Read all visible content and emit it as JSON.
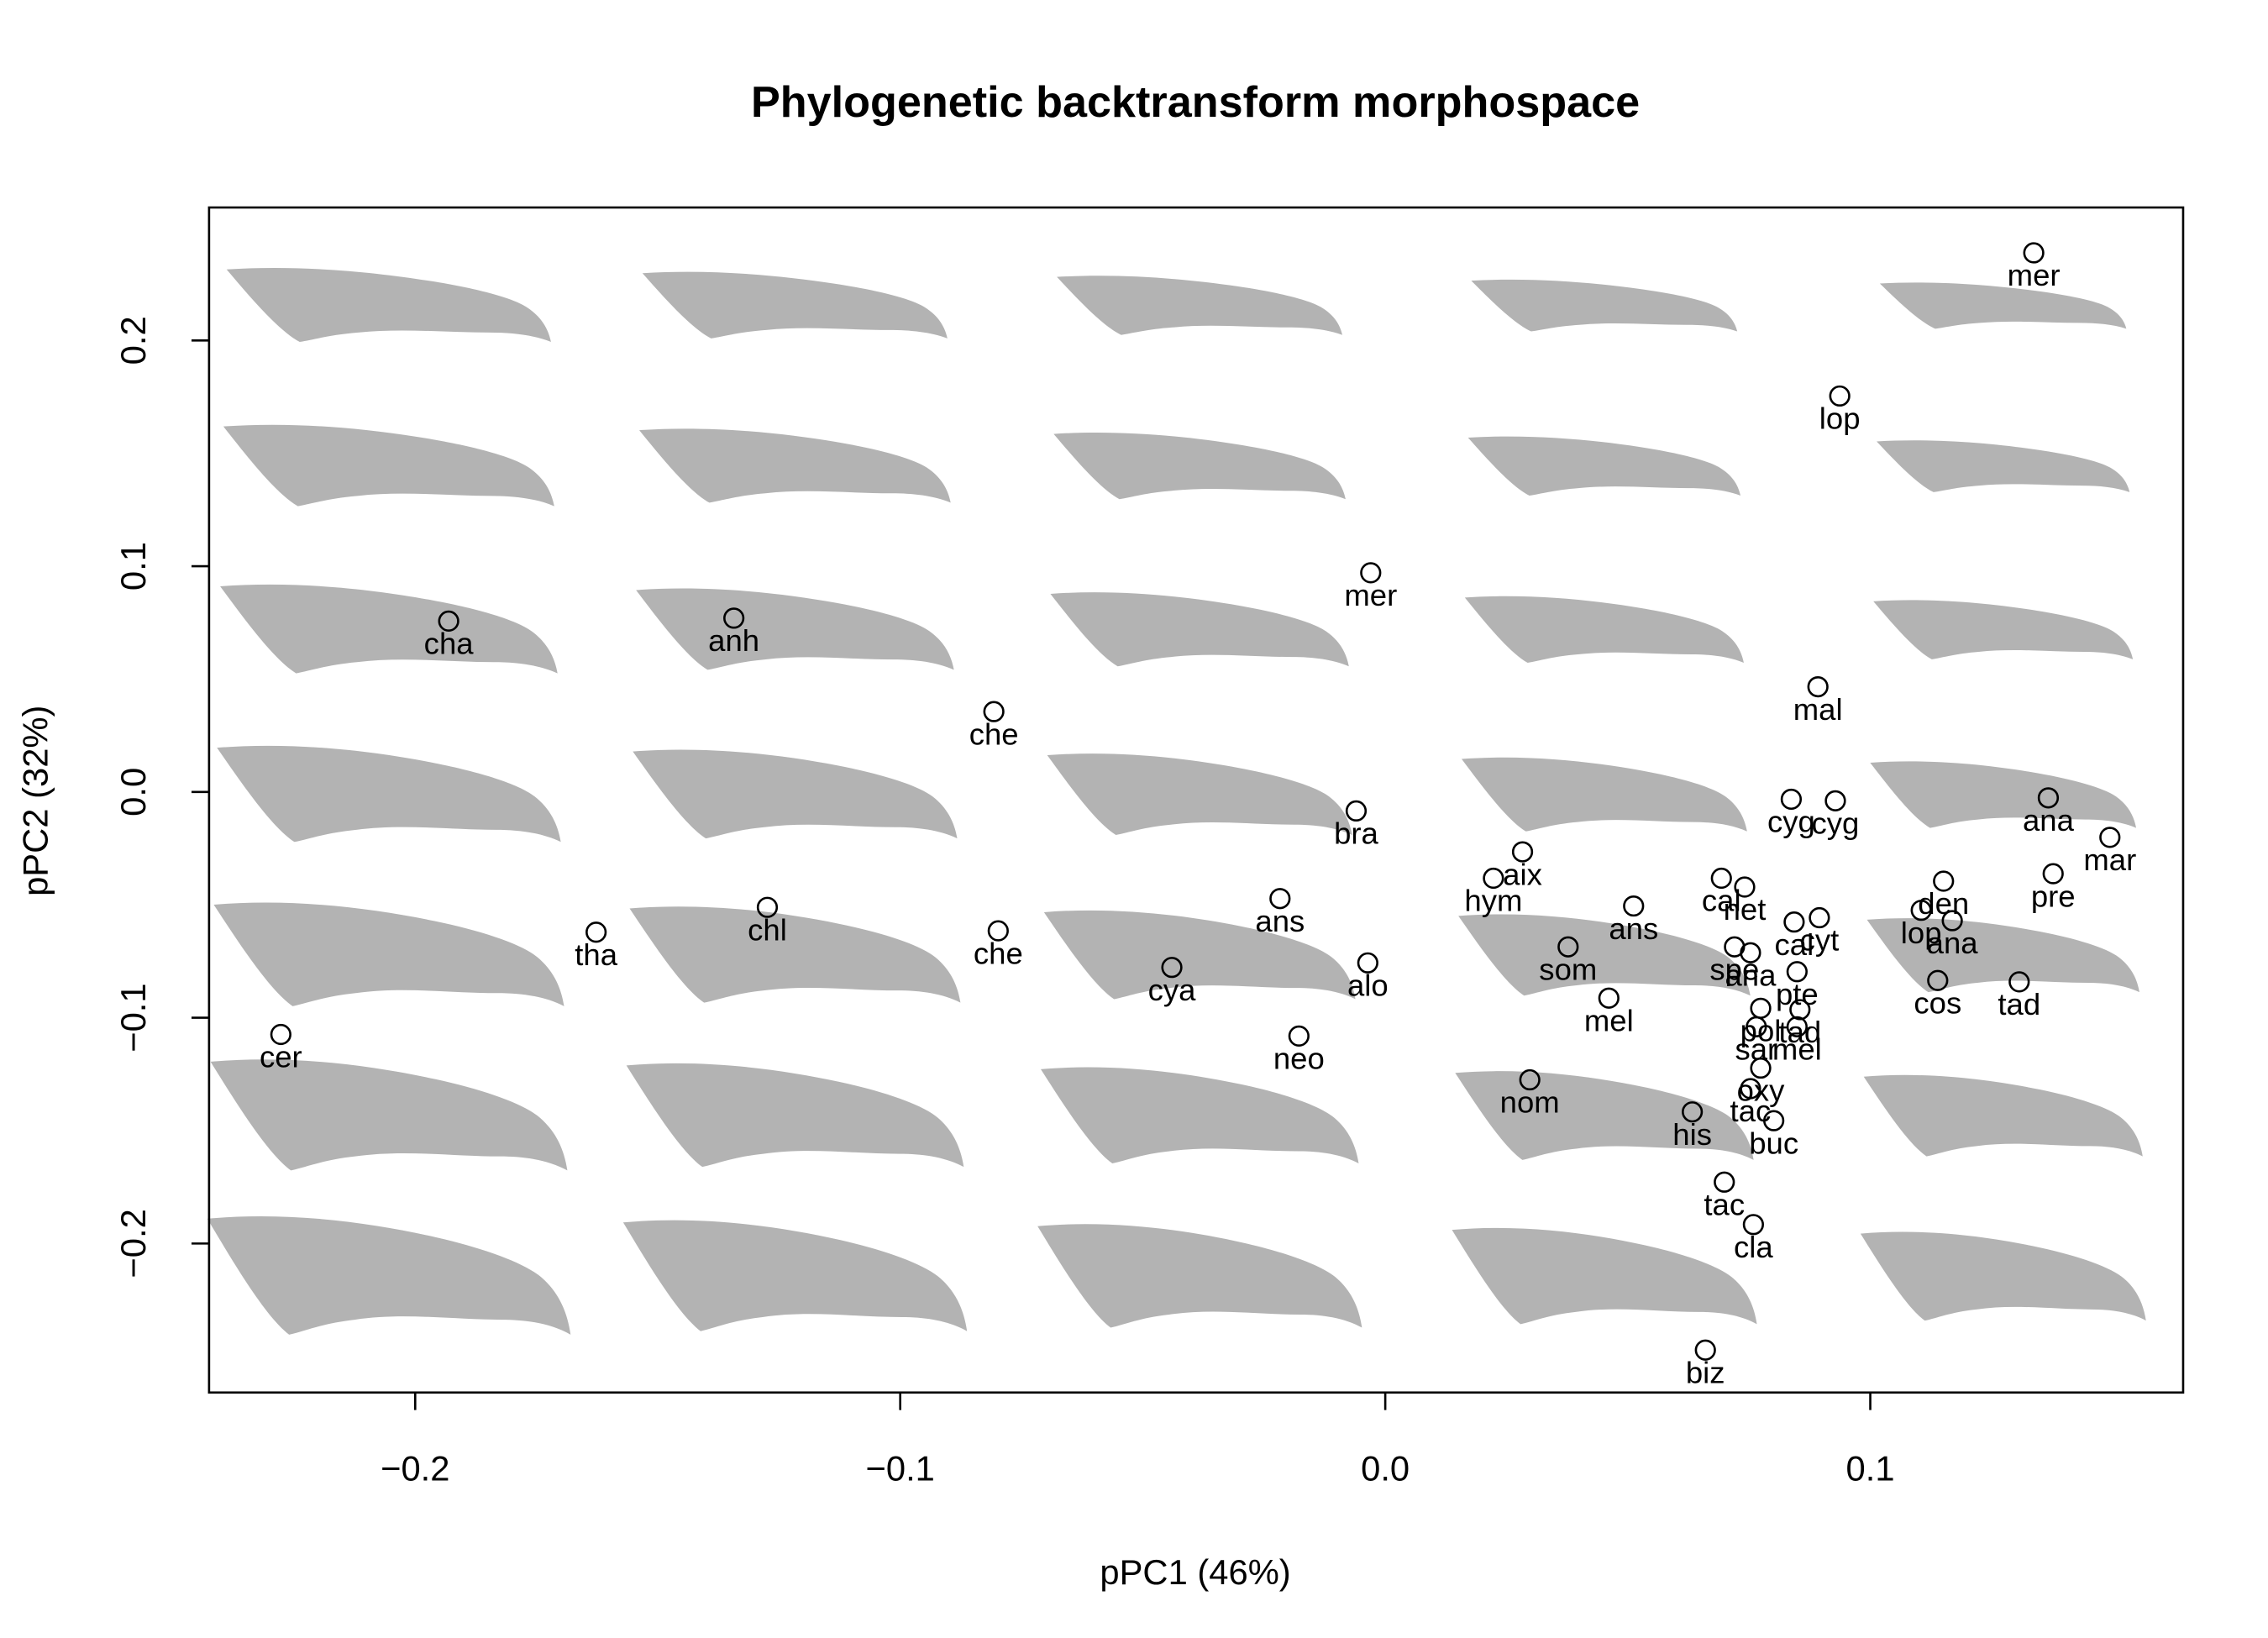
{
  "chart_data": {
    "type": "scatter",
    "title": "Phylogenetic backtransform morphospace",
    "xlabel": "pPC1 (46%)",
    "ylabel": "pPC2 (32%)",
    "xlim": [
      -0.2425,
      0.1645
    ],
    "ylim": [
      -0.266,
      0.2589
    ],
    "xticks": [
      {
        "value": -0.2,
        "label": "−0.2"
      },
      {
        "value": -0.1,
        "label": "−0.1"
      },
      {
        "value": 0,
        "label": "0.0"
      },
      0.1
    ],
    "yticks": [
      {
        "value": -0.2,
        "label": "−0.2"
      },
      {
        "value": -0.1,
        "label": "−0.1"
      },
      {
        "value": 0,
        "label": "0.0"
      },
      0.1,
      0.2
    ],
    "color": "#000000",
    "labels": [
      "mer",
      "lop",
      "mer",
      "cha",
      "anh",
      "mal",
      "che",
      "bra",
      "cyg",
      "cyg",
      "ana",
      "mar",
      "aix",
      "hym",
      "pre",
      "den",
      "cal",
      "net",
      "ans",
      "ans",
      "chl",
      "tha",
      "che",
      "lop",
      "ana",
      "cal",
      "cyt",
      "som",
      "spe",
      "ana",
      "cya",
      "alo",
      "cos",
      "tad",
      "pte",
      "pol",
      "mel",
      "tad",
      "mel",
      "sar",
      "oxy",
      "tac",
      "cer",
      "neo",
      "nom",
      "his",
      "buc",
      "tac",
      "cla",
      "biz"
    ],
    "x": [
      0.1337,
      0.0937,
      -0.003,
      -0.1931,
      -0.1343,
      0.0892,
      -0.0807,
      -0.006,
      0.0837,
      0.0928,
      0.1367,
      0.1494,
      0.0283,
      0.0223,
      0.1377,
      0.1151,
      0.0693,
      0.0741,
      0.0512,
      -0.0217,
      -0.1274,
      -0.1627,
      -0.0798,
      0.1105,
      0.1169,
      0.0843,
      0.0895,
      0.0377,
      0.072,
      0.0753,
      -0.044,
      -0.0036,
      0.1139,
      0.1307,
      0.0849,
      0.0774,
      0.0461,
      0.0855,
      0.0849,
      0.0765,
      0.0774,
      0.0753,
      -0.2277,
      -0.0178,
      0.0298,
      0.0633,
      0.0801,
      0.0699,
      0.0759,
      0.066
    ],
    "values": [
      0.2388,
      0.1754,
      0.0971,
      0.0757,
      0.077,
      0.0466,
      0.0356,
      -0.0084,
      -0.0032,
      -0.0039,
      -0.0026,
      -0.0201,
      -0.0265,
      -0.0382,
      -0.0362,
      -0.0395,
      -0.0382,
      -0.0421,
      -0.0505,
      -0.0472,
      -0.0511,
      -0.0621,
      -0.0615,
      -0.0524,
      -0.057,
      -0.0576,
      -0.0557,
      -0.0686,
      -0.0686,
      -0.0712,
      -0.0777,
      -0.0757,
      -0.0835,
      -0.0841,
      -0.0796,
      -0.0958,
      -0.0913,
      -0.0964,
      -0.104,
      -0.104,
      -0.1223,
      -0.1314,
      -0.1074,
      -0.1081,
      -0.1275,
      -0.1417,
      -0.1456,
      -0.1728,
      -0.1916,
      -0.2472
    ]
  }
}
